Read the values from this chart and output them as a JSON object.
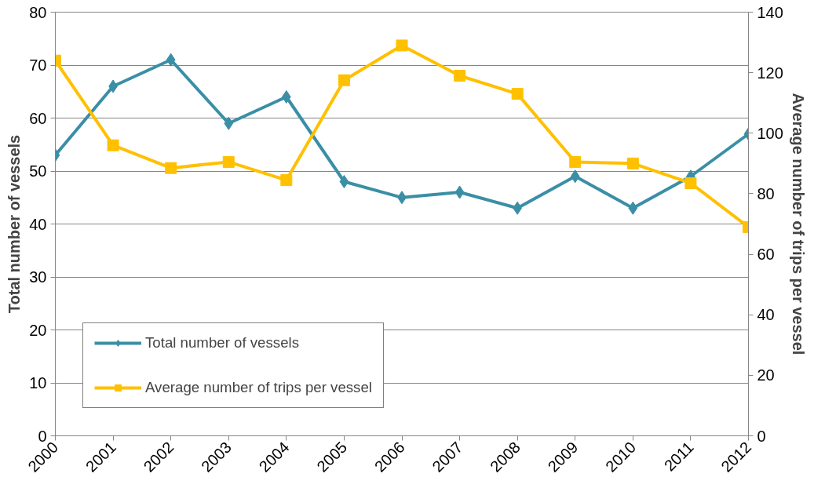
{
  "chart_data": {
    "type": "line",
    "ylabel": "Total number of vessels",
    "y2label": "Average number of trips per vessel",
    "categories": [
      "2000",
      "2001",
      "2002",
      "2003",
      "2004",
      "2005",
      "2006",
      "2007",
      "2008",
      "2009",
      "2010",
      "2011",
      "2012"
    ],
    "series": [
      {
        "name": "Total number of vessels",
        "color": "#3a8fa6",
        "marker": "diamond",
        "values": [
          53,
          66,
          71,
          59,
          64,
          48,
          45,
          46,
          43,
          49,
          43,
          49,
          57
        ]
      },
      {
        "name": "Average number of trips per vessel",
        "color": "#ffc000",
        "marker": "square",
        "axis": "y2",
        "values": [
          124,
          96,
          88.5,
          90.5,
          84.5,
          117.5,
          129,
          119,
          113,
          90.5,
          90,
          83.5,
          69
        ]
      }
    ],
    "ylim": [
      0,
      80
    ],
    "yticks": [
      0,
      10,
      20,
      30,
      40,
      50,
      60,
      70,
      80
    ],
    "y2lim": [
      0,
      140
    ],
    "y2ticks": [
      0,
      20,
      40,
      60,
      80,
      100,
      120,
      140
    ],
    "grid": "y",
    "legend": "bottom left",
    "line_style": "solid"
  }
}
